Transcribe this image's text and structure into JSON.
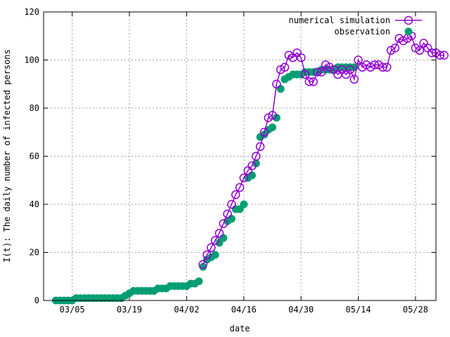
{
  "chart_data": {
    "type": "line",
    "xlabel": "date",
    "ylabel": "I(t): The daily number of infected persons",
    "xlim": [
      "2020-02-27",
      "2020-06-02"
    ],
    "ylim": [
      0,
      120
    ],
    "grid": true,
    "legend_position": "top-right",
    "x_ticks": [
      {
        "date": "2020-03-05",
        "label": "03/05"
      },
      {
        "date": "2020-03-19",
        "label": "03/19"
      },
      {
        "date": "2020-04-02",
        "label": "04/02"
      },
      {
        "date": "2020-04-16",
        "label": "04/16"
      },
      {
        "date": "2020-04-30",
        "label": "04/30"
      },
      {
        "date": "2020-05-14",
        "label": "05/14"
      },
      {
        "date": "2020-05-28",
        "label": "05/28"
      }
    ],
    "y_ticks": [
      0,
      20,
      40,
      60,
      80,
      100,
      120
    ],
    "start_date": "2020-03-01",
    "series": [
      {
        "name": "numerical simulation",
        "color": "#9400d3",
        "marker": "open-circle",
        "style": "line+points",
        "points": [
          [
            36,
            15
          ],
          [
            37,
            19
          ],
          [
            38,
            22
          ],
          [
            39,
            25
          ],
          [
            40,
            28
          ],
          [
            41,
            32
          ],
          [
            42,
            36
          ],
          [
            43,
            40
          ],
          [
            44,
            44
          ],
          [
            45,
            47
          ],
          [
            46,
            51
          ],
          [
            47,
            54
          ],
          [
            48,
            56
          ],
          [
            49,
            60
          ],
          [
            50,
            64
          ],
          [
            51,
            70
          ],
          [
            52,
            76
          ],
          [
            53,
            77
          ],
          [
            54,
            90
          ],
          [
            55,
            96
          ],
          [
            56,
            97
          ],
          [
            57,
            102
          ],
          [
            58,
            101
          ],
          [
            59,
            103
          ],
          [
            60,
            101
          ],
          [
            61,
            94
          ],
          [
            62,
            91
          ],
          [
            63,
            91
          ],
          [
            64,
            95
          ],
          [
            65,
            95
          ],
          [
            66,
            98
          ],
          [
            67,
            97
          ],
          [
            68,
            96
          ],
          [
            69,
            94
          ],
          [
            70,
            96
          ],
          [
            71,
            94
          ],
          [
            72,
            96
          ],
          [
            73,
            92
          ],
          [
            74,
            100
          ],
          [
            75,
            97
          ],
          [
            76,
            98
          ],
          [
            77,
            97
          ],
          [
            78,
            98
          ],
          [
            79,
            98
          ],
          [
            80,
            97
          ],
          [
            81,
            97
          ],
          [
            82,
            104
          ],
          [
            83,
            105
          ],
          [
            84,
            109
          ],
          [
            85,
            108
          ],
          [
            86,
            109
          ],
          [
            87,
            110
          ],
          [
            88,
            105
          ],
          [
            89,
            104
          ],
          [
            90,
            107
          ],
          [
            91,
            105
          ],
          [
            92,
            103
          ],
          [
            93,
            103
          ],
          [
            94,
            102
          ],
          [
            95,
            102
          ]
        ]
      },
      {
        "name": "observation",
        "color": "#009e73",
        "marker": "filled-circle",
        "style": "points",
        "points": [
          [
            0,
            0
          ],
          [
            1,
            0
          ],
          [
            2,
            0
          ],
          [
            3,
            0
          ],
          [
            4,
            0
          ],
          [
            5,
            1
          ],
          [
            6,
            1
          ],
          [
            7,
            1
          ],
          [
            8,
            1
          ],
          [
            9,
            1
          ],
          [
            10,
            1
          ],
          [
            11,
            1
          ],
          [
            12,
            1
          ],
          [
            13,
            1
          ],
          [
            14,
            1
          ],
          [
            15,
            1
          ],
          [
            16,
            1
          ],
          [
            17,
            2
          ],
          [
            18,
            3
          ],
          [
            19,
            4
          ],
          [
            20,
            4
          ],
          [
            21,
            4
          ],
          [
            22,
            4
          ],
          [
            23,
            4
          ],
          [
            24,
            4
          ],
          [
            25,
            5
          ],
          [
            26,
            5
          ],
          [
            27,
            5
          ],
          [
            28,
            6
          ],
          [
            29,
            6
          ],
          [
            30,
            6
          ],
          [
            31,
            6
          ],
          [
            32,
            6
          ],
          [
            33,
            7
          ],
          [
            34,
            7
          ],
          [
            35,
            8
          ],
          [
            36,
            14
          ],
          [
            37,
            17
          ],
          [
            38,
            18
          ],
          [
            39,
            19
          ],
          [
            40,
            24
          ],
          [
            41,
            26
          ],
          [
            42,
            33
          ],
          [
            43,
            34
          ],
          [
            44,
            38
          ],
          [
            45,
            38
          ],
          [
            46,
            40
          ],
          [
            47,
            51
          ],
          [
            48,
            52
          ],
          [
            49,
            57
          ],
          [
            50,
            68
          ],
          [
            51,
            69
          ],
          [
            52,
            71
          ],
          [
            53,
            72
          ],
          [
            54,
            76
          ],
          [
            55,
            88
          ],
          [
            56,
            92
          ],
          [
            57,
            93
          ],
          [
            58,
            94
          ],
          [
            59,
            94
          ],
          [
            60,
            94
          ],
          [
            61,
            95
          ],
          [
            62,
            95
          ],
          [
            63,
            95
          ],
          [
            64,
            95
          ],
          [
            65,
            96
          ],
          [
            66,
            96
          ],
          [
            67,
            96
          ],
          [
            68,
            96
          ],
          [
            69,
            97
          ],
          [
            70,
            97
          ],
          [
            71,
            97
          ],
          [
            72,
            97
          ],
          [
            73,
            97
          ]
        ]
      }
    ]
  },
  "colors": {
    "background": "#ffffff",
    "simulation": "#9400d3",
    "observation": "#009e73"
  }
}
